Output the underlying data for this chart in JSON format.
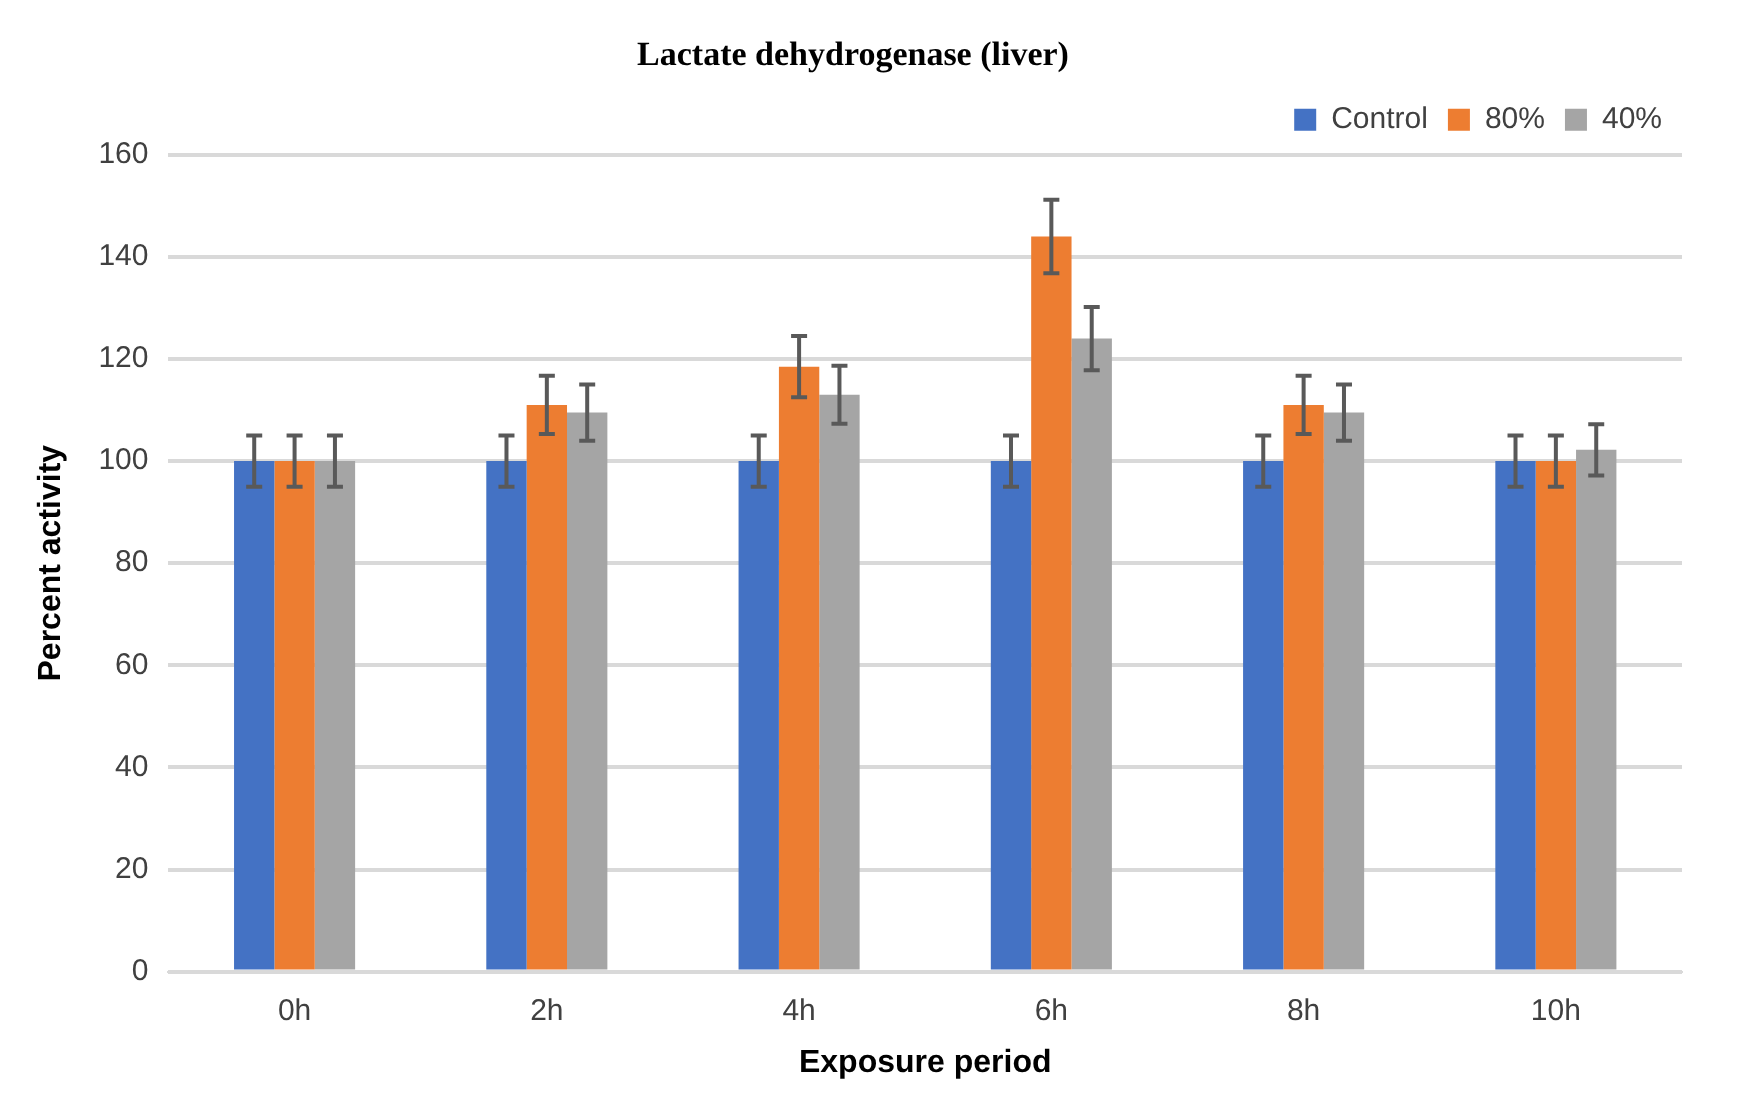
{
  "chart_data": {
    "type": "bar",
    "title": "Lactate dehydrogenase (liver)",
    "xlabel": "Exposure period",
    "ylabel": "Percent activity",
    "categories": [
      "0h",
      "2h",
      "4h",
      "6h",
      "8h",
      "10h"
    ],
    "series": [
      {
        "name": "Control",
        "color": "#4472c4",
        "values": [
          100,
          100,
          100,
          100,
          100,
          100
        ],
        "errors": [
          5,
          5,
          5,
          5,
          5,
          5
        ]
      },
      {
        "name": "80%",
        "color": "#ed7d31",
        "values": [
          100,
          111,
          118.5,
          144,
          111,
          100
        ],
        "errors": [
          5,
          5.7,
          6,
          7.2,
          5.7,
          5
        ]
      },
      {
        "name": "40%",
        "color": "#a5a5a5",
        "values": [
          100,
          109.5,
          113,
          124,
          109.5,
          102.2
        ],
        "errors": [
          5,
          5.5,
          5.7,
          6.2,
          5.5,
          5
        ]
      }
    ],
    "ylim": [
      0,
      160
    ],
    "yticks": [
      0,
      20,
      40,
      60,
      80,
      100,
      120,
      140,
      160
    ],
    "grid": "y",
    "legend": "top right"
  }
}
